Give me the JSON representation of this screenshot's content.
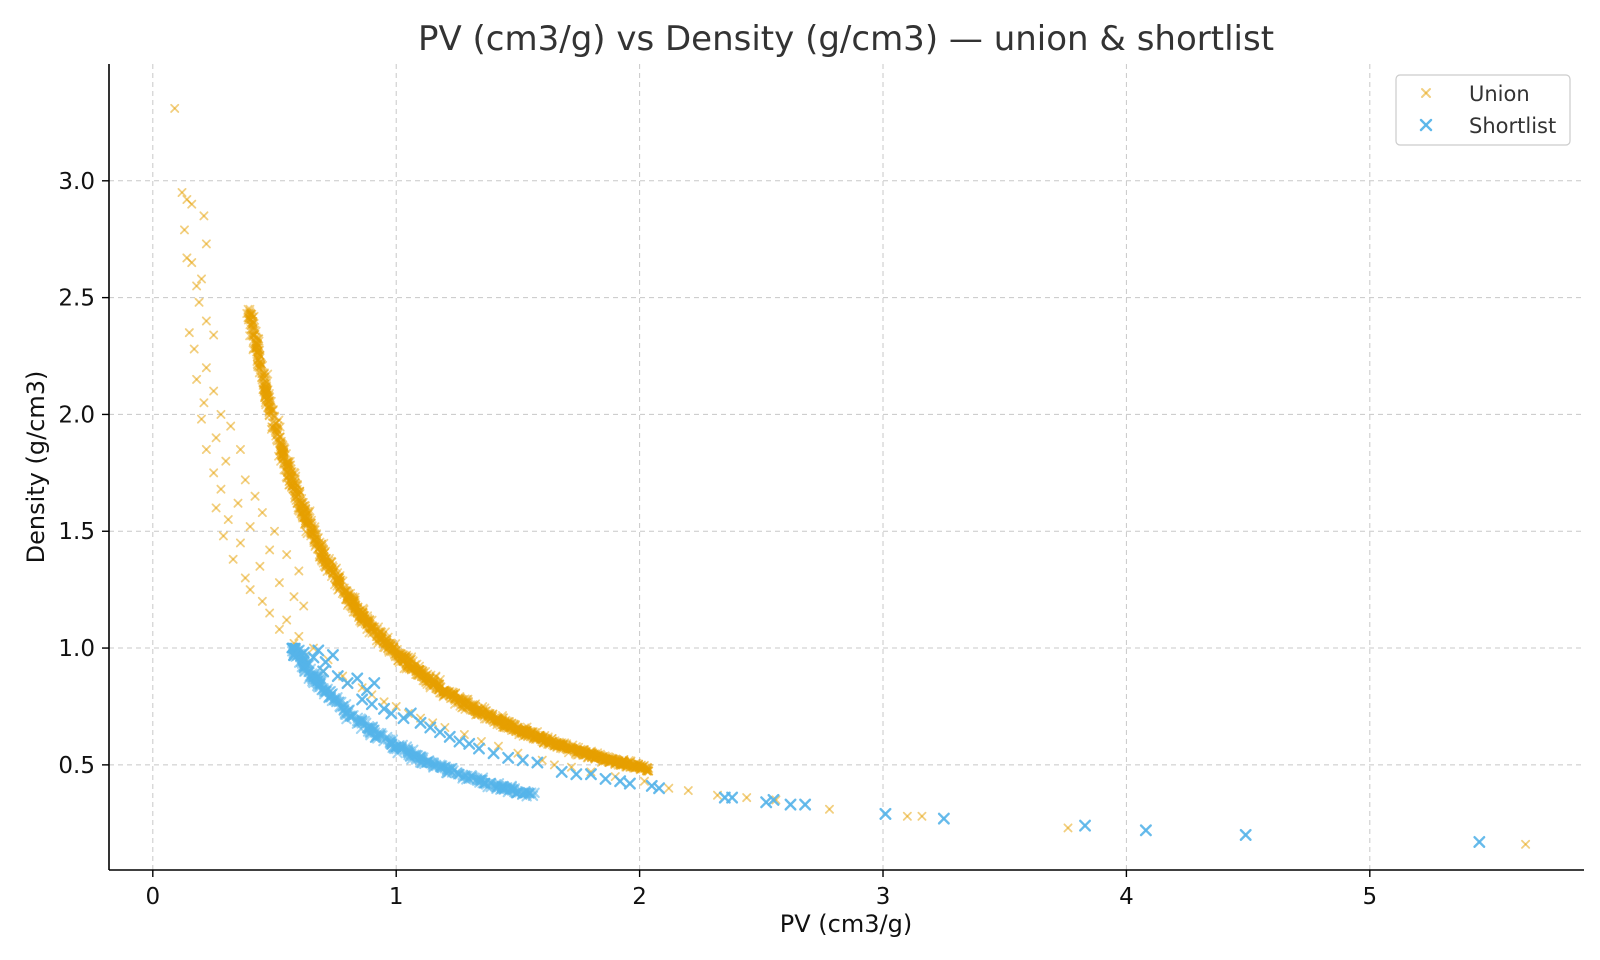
{
  "chart_data": {
    "type": "scatter",
    "title": "PV (cm3/g) vs Density (g/cm3) — union & shortlist",
    "xlabel": "PV (cm3/g)",
    "ylabel": "Density (g/cm3)",
    "xlim": [
      -0.18,
      5.88
    ],
    "ylim": [
      0.05,
      3.5
    ],
    "xticks": [
      0,
      1,
      2,
      3,
      4,
      5
    ],
    "xtick_labels": [
      "0",
      "1",
      "2",
      "3",
      "4",
      "5"
    ],
    "yticks": [
      0.5,
      1.0,
      1.5,
      2.0,
      2.5,
      3.0
    ],
    "ytick_labels": [
      "0.5",
      "1.0",
      "1.5",
      "2.0",
      "2.5",
      "3.0"
    ],
    "grid": true,
    "legend_position": "top-right",
    "marker": "x",
    "colors": {
      "union": "#E69F00",
      "shortlist": "#56B4E9"
    },
    "series": [
      {
        "name": "Union",
        "relation": "density ≈ 0.98 / PV",
        "x_range": [
          0.09,
          5.64
        ],
        "points": [
          [
            0.09,
            3.31
          ],
          [
            0.12,
            2.95
          ],
          [
            0.14,
            2.92
          ],
          [
            0.16,
            2.9
          ],
          [
            0.13,
            2.79
          ],
          [
            0.21,
            2.85
          ],
          [
            0.22,
            2.73
          ],
          [
            0.14,
            2.67
          ],
          [
            0.16,
            2.65
          ],
          [
            0.2,
            2.58
          ],
          [
            0.18,
            2.55
          ],
          [
            0.19,
            2.48
          ],
          [
            0.22,
            2.4
          ],
          [
            0.15,
            2.35
          ],
          [
            0.25,
            2.34
          ],
          [
            0.17,
            2.28
          ],
          [
            0.22,
            2.2
          ],
          [
            0.18,
            2.15
          ],
          [
            0.25,
            2.1
          ],
          [
            0.21,
            2.05
          ],
          [
            0.28,
            2.0
          ],
          [
            0.2,
            1.98
          ],
          [
            0.32,
            1.95
          ],
          [
            0.26,
            1.9
          ],
          [
            0.22,
            1.85
          ],
          [
            0.36,
            1.85
          ],
          [
            0.3,
            1.8
          ],
          [
            0.25,
            1.75
          ],
          [
            0.38,
            1.72
          ],
          [
            0.28,
            1.68
          ],
          [
            0.42,
            1.65
          ],
          [
            0.35,
            1.62
          ],
          [
            0.26,
            1.6
          ],
          [
            0.45,
            1.58
          ],
          [
            0.31,
            1.55
          ],
          [
            0.4,
            1.52
          ],
          [
            0.5,
            1.5
          ],
          [
            0.29,
            1.48
          ],
          [
            0.36,
            1.45
          ],
          [
            0.48,
            1.42
          ],
          [
            0.55,
            1.4
          ],
          [
            0.33,
            1.38
          ],
          [
            0.44,
            1.35
          ],
          [
            0.6,
            1.33
          ],
          [
            0.38,
            1.3
          ],
          [
            0.52,
            1.28
          ],
          [
            0.4,
            1.25
          ],
          [
            0.58,
            1.22
          ],
          [
            0.45,
            1.2
          ],
          [
            0.62,
            1.18
          ],
          [
            0.48,
            1.15
          ],
          [
            0.55,
            1.12
          ],
          [
            0.52,
            1.08
          ],
          [
            0.6,
            1.05
          ],
          [
            0.58,
            1.02
          ],
          [
            0.66,
            1.0
          ],
          [
            0.62,
            0.96
          ],
          [
            0.72,
            0.95
          ],
          [
            0.7,
            0.9
          ],
          [
            0.78,
            0.88
          ],
          [
            0.8,
            0.85
          ],
          [
            0.86,
            0.83
          ],
          [
            0.9,
            0.8
          ],
          [
            0.95,
            0.77
          ],
          [
            1.0,
            0.75
          ],
          [
            1.05,
            0.72
          ],
          [
            1.1,
            0.7
          ],
          [
            1.15,
            0.68
          ],
          [
            1.2,
            0.66
          ],
          [
            1.28,
            0.63
          ],
          [
            1.35,
            0.6
          ],
          [
            1.42,
            0.58
          ],
          [
            1.5,
            0.55
          ],
          [
            1.6,
            0.52
          ],
          [
            1.65,
            0.5
          ],
          [
            1.72,
            0.49
          ],
          [
            1.8,
            0.47
          ],
          [
            1.9,
            0.45
          ],
          [
            2.02,
            0.43
          ],
          [
            2.12,
            0.4
          ],
          [
            2.2,
            0.39
          ],
          [
            2.32,
            0.37
          ],
          [
            2.44,
            0.36
          ],
          [
            2.56,
            0.35
          ],
          [
            2.78,
            0.31
          ],
          [
            3.1,
            0.28
          ],
          [
            3.16,
            0.28
          ],
          [
            3.76,
            0.23
          ],
          [
            5.64,
            0.16
          ]
        ]
      },
      {
        "name": "Shortlist",
        "points": [
          [
            0.58,
            0.97
          ],
          [
            0.62,
            0.98
          ],
          [
            0.66,
            0.96
          ],
          [
            0.68,
            0.99
          ],
          [
            0.71,
            0.94
          ],
          [
            0.74,
            0.97
          ],
          [
            0.7,
            0.9
          ],
          [
            0.76,
            0.88
          ],
          [
            0.8,
            0.85
          ],
          [
            0.84,
            0.87
          ],
          [
            0.88,
            0.82
          ],
          [
            0.91,
            0.85
          ],
          [
            0.86,
            0.78
          ],
          [
            0.9,
            0.76
          ],
          [
            0.95,
            0.74
          ],
          [
            0.98,
            0.72
          ],
          [
            1.03,
            0.7
          ],
          [
            1.06,
            0.72
          ],
          [
            1.1,
            0.68
          ],
          [
            1.14,
            0.66
          ],
          [
            1.18,
            0.64
          ],
          [
            1.22,
            0.62
          ],
          [
            1.26,
            0.6
          ],
          [
            1.3,
            0.59
          ],
          [
            1.34,
            0.57
          ],
          [
            1.4,
            0.55
          ],
          [
            1.46,
            0.53
          ],
          [
            1.52,
            0.52
          ],
          [
            1.58,
            0.51
          ],
          [
            1.68,
            0.47
          ],
          [
            1.74,
            0.46
          ],
          [
            1.8,
            0.46
          ],
          [
            1.86,
            0.44
          ],
          [
            1.92,
            0.43
          ],
          [
            1.96,
            0.42
          ],
          [
            2.05,
            0.41
          ],
          [
            2.08,
            0.4
          ],
          [
            2.35,
            0.36
          ],
          [
            2.38,
            0.36
          ],
          [
            2.52,
            0.34
          ],
          [
            2.55,
            0.35
          ],
          [
            2.62,
            0.33
          ],
          [
            2.68,
            0.33
          ],
          [
            3.01,
            0.29
          ],
          [
            3.25,
            0.27
          ],
          [
            3.83,
            0.24
          ],
          [
            4.08,
            0.22
          ],
          [
            4.49,
            0.2
          ],
          [
            5.45,
            0.17
          ]
        ]
      }
    ]
  }
}
